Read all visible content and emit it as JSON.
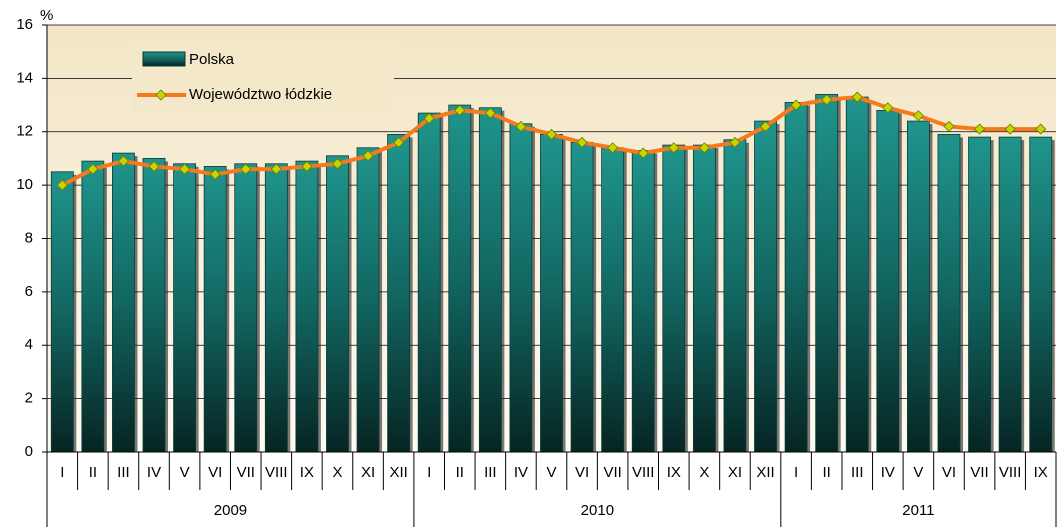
{
  "chart_data": {
    "type": "bar_line",
    "y_unit": "%",
    "category_groups": [
      {
        "label": "2009",
        "categories": [
          "I",
          "II",
          "III",
          "IV",
          "V",
          "VI",
          "VII",
          "VIII",
          "IX",
          "X",
          "XI",
          "XII"
        ]
      },
      {
        "label": "2010",
        "categories": [
          "I",
          "II",
          "III",
          "IV",
          "V",
          "VI",
          "VII",
          "VIII",
          "IX",
          "X",
          "XI",
          "XII"
        ]
      },
      {
        "label": "2011",
        "categories": [
          "I",
          "II",
          "III",
          "IV",
          "V",
          "VI",
          "VII",
          "VIII",
          "IX"
        ]
      }
    ],
    "series": [
      {
        "name": "Polska",
        "type": "bar",
        "color": "#1a8a82",
        "values": [
          10.5,
          10.9,
          11.2,
          11.0,
          10.8,
          10.7,
          10.8,
          10.8,
          10.9,
          11.1,
          11.4,
          11.9,
          12.7,
          13.0,
          12.9,
          12.3,
          11.9,
          11.6,
          11.4,
          11.3,
          11.5,
          11.5,
          11.7,
          12.4,
          13.1,
          13.4,
          13.3,
          12.8,
          12.4,
          11.9,
          11.8,
          11.8,
          11.8
        ]
      },
      {
        "name": "Województwo łódzkie",
        "type": "line",
        "color": "#f47a1c",
        "marker_color": "#c8d400",
        "values": [
          10.0,
          10.6,
          10.9,
          10.7,
          10.6,
          10.4,
          10.6,
          10.6,
          10.7,
          10.8,
          11.1,
          11.6,
          12.5,
          12.8,
          12.7,
          12.2,
          11.9,
          11.6,
          11.4,
          11.2,
          11.4,
          11.4,
          11.6,
          12.2,
          13.0,
          13.2,
          13.3,
          12.9,
          12.6,
          12.2,
          12.1,
          12.1,
          12.1
        ]
      }
    ],
    "ylim": [
      0,
      16
    ],
    "yticks": [
      0,
      2,
      4,
      6,
      8,
      10,
      12,
      14,
      16
    ],
    "grid": true
  }
}
